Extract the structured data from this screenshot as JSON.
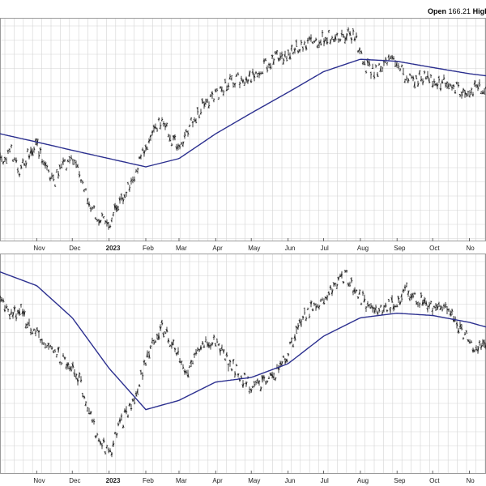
{
  "header": {
    "open_label": "Open",
    "open_value": "166.21",
    "high_label": "High"
  },
  "colors": {
    "background": "#ffffff",
    "grid": "#d4d4d4",
    "panel_border": "#9a9a9a",
    "price_bars": "#111111",
    "moving_average": "#2b2f8f"
  },
  "chart_data": [
    {
      "type": "ohlc",
      "panel": "upper",
      "title": "",
      "xlabel": "",
      "ylabel": "",
      "x_ticks": [
        "Nov",
        "Dec",
        "2023",
        "Feb",
        "Mar",
        "Apr",
        "May",
        "Jun",
        "Jul",
        "Aug",
        "Sep",
        "Oct",
        "No"
      ],
      "x_tick_dates": [
        "2022-11-01",
        "2022-12-01",
        "2023-01-01",
        "2023-02-01",
        "2023-03-01",
        "2023-04-01",
        "2023-05-01",
        "2023-06-01",
        "2023-07-01",
        "2023-08-01",
        "2023-09-01",
        "2023-10-01",
        "2023-11-01"
      ],
      "x_range": [
        "2022-10-01",
        "2023-11-15"
      ],
      "grid": true,
      "series": [
        {
          "kind": "price_bars",
          "points": [
            [
              "2022-10-01",
              62
            ],
            [
              "2022-10-10",
              56
            ],
            [
              "2022-10-18",
              66
            ],
            [
              "2022-10-25",
              58
            ],
            [
              "2022-11-01",
              54
            ],
            [
              "2022-11-08",
              62
            ],
            [
              "2022-11-15",
              72
            ],
            [
              "2022-11-22",
              64
            ],
            [
              "2022-12-01",
              60
            ],
            [
              "2022-12-08",
              68
            ],
            [
              "2022-12-15",
              80
            ],
            [
              "2022-12-22",
              88
            ],
            [
              "2023-01-01",
              92
            ],
            [
              "2023-01-08",
              84
            ],
            [
              "2023-01-15",
              76
            ],
            [
              "2023-01-22",
              68
            ],
            [
              "2023-02-01",
              54
            ],
            [
              "2023-02-08",
              44
            ],
            [
              "2023-02-15",
              42
            ],
            [
              "2023-02-22",
              50
            ],
            [
              "2023-03-01",
              54
            ],
            [
              "2023-03-08",
              46
            ],
            [
              "2023-03-15",
              40
            ],
            [
              "2023-03-22",
              34
            ],
            [
              "2023-04-01",
              30
            ],
            [
              "2023-04-10",
              24
            ],
            [
              "2023-04-20",
              22
            ],
            [
              "2023-05-01",
              20
            ],
            [
              "2023-05-10",
              16
            ],
            [
              "2023-05-20",
              12
            ],
            [
              "2023-06-01",
              10
            ],
            [
              "2023-06-10",
              6
            ],
            [
              "2023-06-20",
              4
            ],
            [
              "2023-07-01",
              2
            ],
            [
              "2023-07-10",
              1
            ],
            [
              "2023-07-20",
              0
            ],
            [
              "2023-07-28",
              2
            ],
            [
              "2023-08-03",
              14
            ],
            [
              "2023-08-12",
              18
            ],
            [
              "2023-08-22",
              14
            ],
            [
              "2023-09-01",
              12
            ],
            [
              "2023-09-08",
              20
            ],
            [
              "2023-09-18",
              22
            ],
            [
              "2023-09-28",
              20
            ],
            [
              "2023-10-05",
              24
            ],
            [
              "2023-10-15",
              22
            ],
            [
              "2023-10-25",
              28
            ],
            [
              "2023-11-05",
              26
            ]
          ]
        },
        {
          "kind": "moving_average",
          "points": [
            [
              "2022-10-01",
              48
            ],
            [
              "2022-11-01",
              52
            ],
            [
              "2022-12-01",
              56
            ],
            [
              "2023-01-01",
              60
            ],
            [
              "2023-02-01",
              64
            ],
            [
              "2023-03-01",
              60
            ],
            [
              "2023-04-01",
              48
            ],
            [
              "2023-05-01",
              38
            ],
            [
              "2023-06-01",
              28
            ],
            [
              "2023-07-01",
              18
            ],
            [
              "2023-08-01",
              12
            ],
            [
              "2023-09-01",
              13
            ],
            [
              "2023-10-01",
              16
            ],
            [
              "2023-11-01",
              19
            ],
            [
              "2023-11-15",
              20
            ]
          ]
        }
      ]
    },
    {
      "type": "ohlc",
      "panel": "lower",
      "title": "",
      "xlabel": "",
      "ylabel": "",
      "x_ticks": [
        "Nov",
        "Dec",
        "2023",
        "Feb",
        "Mar",
        "Apr",
        "May",
        "Jun",
        "Jul",
        "Aug",
        "Sep",
        "Oct",
        "No"
      ],
      "x_tick_dates": [
        "2022-11-01",
        "2022-12-01",
        "2023-01-01",
        "2023-02-01",
        "2023-03-01",
        "2023-04-01",
        "2023-05-01",
        "2023-06-01",
        "2023-07-01",
        "2023-08-01",
        "2023-09-01",
        "2023-10-01",
        "2023-11-01"
      ],
      "x_range": [
        "2022-10-01",
        "2023-11-15"
      ],
      "grid": true,
      "series": [
        {
          "kind": "price_bars",
          "points": [
            [
              "2022-10-01",
              40
            ],
            [
              "2022-10-10",
              46
            ],
            [
              "2022-10-18",
              44
            ],
            [
              "2022-10-25",
              52
            ],
            [
              "2022-11-01",
              54
            ],
            [
              "2022-11-08",
              58
            ],
            [
              "2022-11-15",
              62
            ],
            [
              "2022-11-22",
              66
            ],
            [
              "2022-12-01",
              70
            ],
            [
              "2022-12-08",
              76
            ],
            [
              "2022-12-15",
              88
            ],
            [
              "2022-12-22",
              100
            ],
            [
              "2023-01-01",
              108
            ],
            [
              "2023-01-08",
              98
            ],
            [
              "2023-01-15",
              90
            ],
            [
              "2023-01-22",
              84
            ],
            [
              "2023-02-01",
              68
            ],
            [
              "2023-02-08",
              56
            ],
            [
              "2023-02-15",
              52
            ],
            [
              "2023-02-22",
              58
            ],
            [
              "2023-03-01",
              66
            ],
            [
              "2023-03-08",
              72
            ],
            [
              "2023-03-15",
              66
            ],
            [
              "2023-03-22",
              60
            ],
            [
              "2023-04-01",
              58
            ],
            [
              "2023-04-10",
              66
            ],
            [
              "2023-04-20",
              72
            ],
            [
              "2023-05-01",
              78
            ],
            [
              "2023-05-10",
              76
            ],
            [
              "2023-05-20",
              74
            ],
            [
              "2023-06-01",
              64
            ],
            [
              "2023-06-10",
              52
            ],
            [
              "2023-06-20",
              44
            ],
            [
              "2023-07-01",
              40
            ],
            [
              "2023-07-10",
              34
            ],
            [
              "2023-07-20",
              30
            ],
            [
              "2023-07-28",
              36
            ],
            [
              "2023-08-03",
              40
            ],
            [
              "2023-08-12",
              46
            ],
            [
              "2023-08-22",
              44
            ],
            [
              "2023-09-01",
              40
            ],
            [
              "2023-09-08",
              36
            ],
            [
              "2023-09-18",
              40
            ],
            [
              "2023-09-28",
              42
            ],
            [
              "2023-10-05",
              44
            ],
            [
              "2023-10-15",
              42
            ],
            [
              "2023-10-25",
              54
            ],
            [
              "2023-11-05",
              60
            ]
          ]
        },
        {
          "kind": "moving_average",
          "points": [
            [
              "2022-10-01",
              28
            ],
            [
              "2022-11-01",
              34
            ],
            [
              "2022-12-01",
              48
            ],
            [
              "2023-01-01",
              70
            ],
            [
              "2023-02-01",
              88
            ],
            [
              "2023-03-01",
              84
            ],
            [
              "2023-04-01",
              76
            ],
            [
              "2023-05-01",
              74
            ],
            [
              "2023-06-01",
              68
            ],
            [
              "2023-07-01",
              56
            ],
            [
              "2023-08-01",
              48
            ],
            [
              "2023-09-01",
              46
            ],
            [
              "2023-10-01",
              47
            ],
            [
              "2023-11-01",
              50
            ],
            [
              "2023-11-15",
              52
            ]
          ]
        }
      ]
    }
  ]
}
